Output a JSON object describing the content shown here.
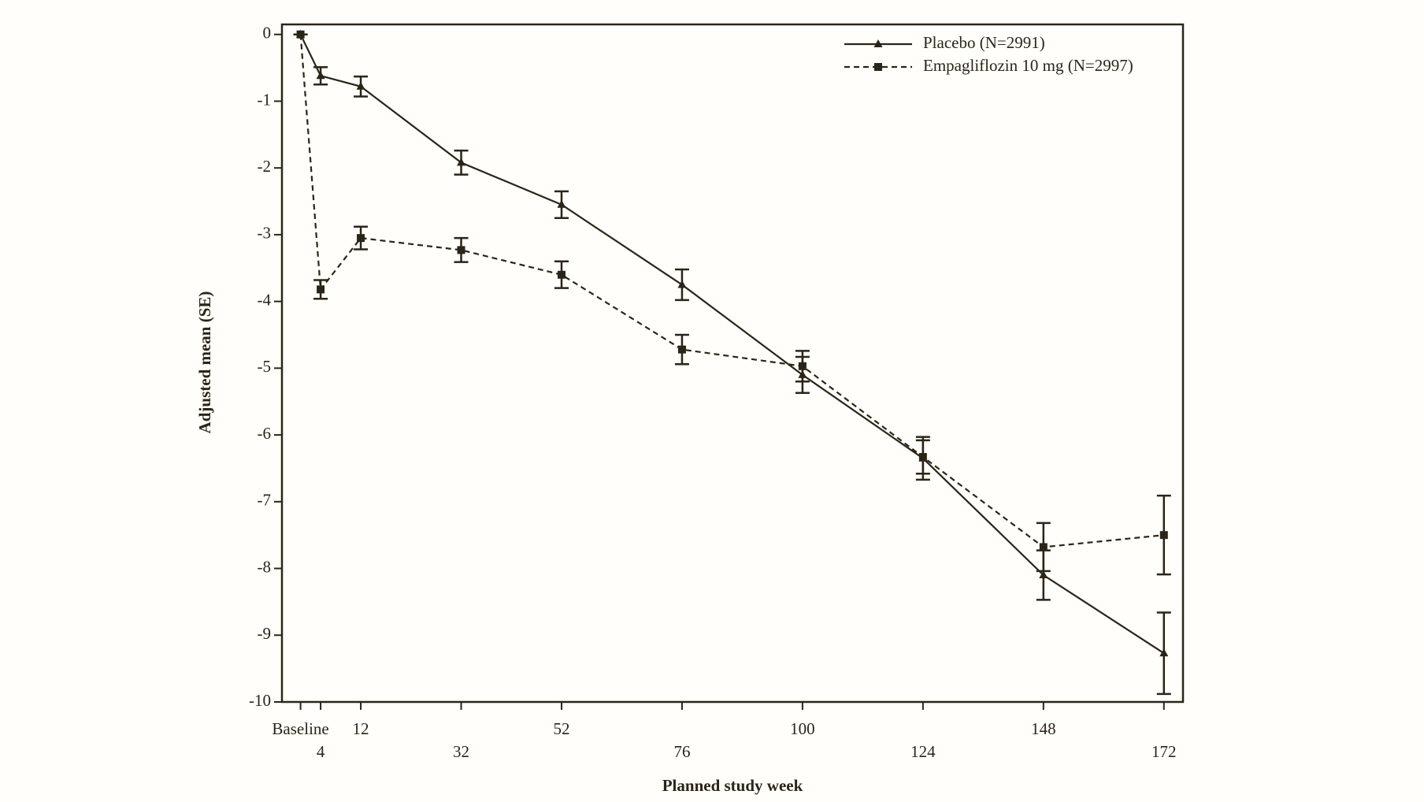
{
  "chart_data": {
    "type": "line",
    "x_label": "Planned study week",
    "y_label": "Adjusted mean (SE)",
    "x": [
      0,
      4,
      12,
      32,
      52,
      76,
      100,
      124,
      148,
      172
    ],
    "series": [
      {
        "name": "Placebo (N=2991)",
        "color": "#2b2418",
        "line_style": "solid",
        "marker": "triangle",
        "values": [
          0,
          -0.62,
          -0.78,
          -1.92,
          -2.55,
          -3.75,
          -5.1,
          -6.35,
          -8.1,
          -9.27
        ],
        "errors": [
          0,
          0.13,
          0.15,
          0.18,
          0.2,
          0.23,
          0.27,
          0.32,
          0.37,
          0.61
        ]
      },
      {
        "name": "Empagliflozin 10 mg (N=2997)",
        "color": "#2b2418",
        "line_style": "dashed",
        "marker": "square",
        "values": [
          0,
          -3.82,
          -3.05,
          -3.23,
          -3.6,
          -4.72,
          -4.97,
          -6.33,
          -7.68,
          -7.5
        ],
        "errors": [
          0,
          0.14,
          0.17,
          0.18,
          0.2,
          0.22,
          0.23,
          0.25,
          0.36,
          0.59
        ]
      }
    ],
    "xlim": [
      -3.7,
      175.8
    ],
    "ylim": [
      -10,
      0.15
    ],
    "xticks": [
      {
        "value": 0,
        "label": "Baseline"
      },
      4,
      12,
      32,
      52,
      76,
      100,
      124,
      148,
      172
    ],
    "yticks": [
      0,
      -1,
      -2,
      -3,
      -4,
      -5,
      -6,
      -7,
      -8,
      -9,
      -10
    ],
    "legend": "upper right"
  }
}
